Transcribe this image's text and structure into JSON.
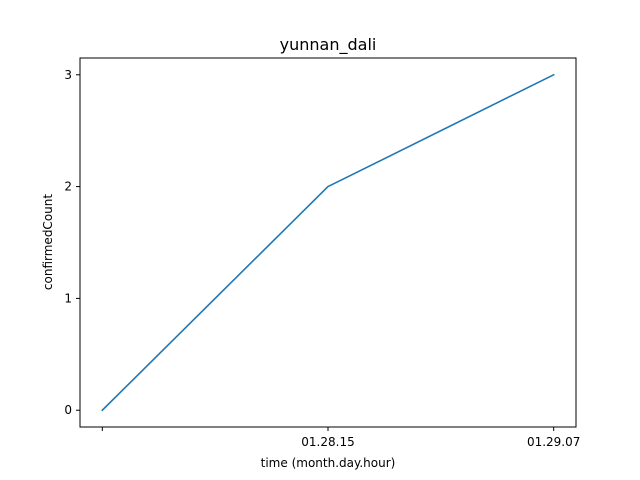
{
  "chart_data": {
    "type": "line",
    "title": "yunnan_dali",
    "xlabel": "time (month.day.hour)",
    "ylabel": "confirmedCount",
    "x_tick_labels": [
      "",
      "01.28.15",
      "01.29.07"
    ],
    "y_ticks": [
      0,
      1,
      2,
      3
    ],
    "ylim": [
      -0.15,
      3.15
    ],
    "grid": false,
    "series": [
      {
        "values": [
          0,
          2,
          3
        ],
        "color": "#1f77b4"
      }
    ]
  }
}
